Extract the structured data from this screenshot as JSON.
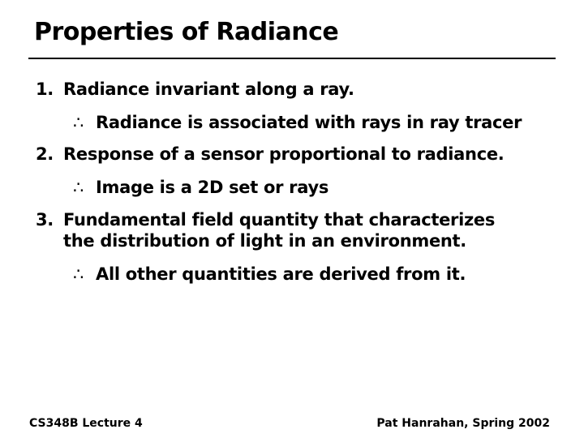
{
  "title": "Properties of Radiance",
  "items": [
    {
      "number": "1.",
      "lines": [
        "Radiance invariant along a ray."
      ],
      "consequence": "Radiance is associated with rays in ray tracer"
    },
    {
      "number": "2.",
      "lines": [
        "Response of a sensor proportional to radiance."
      ],
      "consequence": "Image is a 2D set or rays"
    },
    {
      "number": "3.",
      "lines": [
        "Fundamental field quantity that characterizes",
        "the distribution of light in an environment."
      ],
      "consequence": "All other quantities are derived from it."
    }
  ],
  "therefore_symbol": "∴",
  "footer": {
    "left": "CS348B Lecture 4",
    "right": "Pat Hanrahan, Spring 2002"
  }
}
